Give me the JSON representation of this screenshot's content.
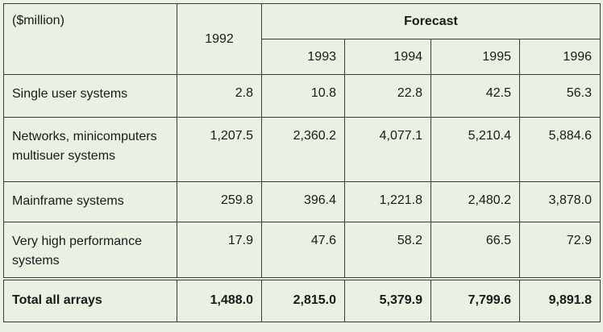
{
  "table": {
    "header": {
      "corner": "($million)",
      "base_year": "1992",
      "forecast": "Forecast",
      "forecast_years": [
        "1993",
        "1994",
        "1995",
        "1996"
      ]
    },
    "rows": [
      [
        "Single user systems",
        "2.8",
        "10.8",
        "22.8",
        "42.5",
        "56.3"
      ],
      [
        "Networks, minicomputers multisuer systems",
        "1,207.5",
        "2,360.2",
        "4,077.1",
        "5,210.4",
        "5,884.6"
      ],
      [
        "Mainframe systems",
        "259.8",
        "396.4",
        "1,221.8",
        "2,480.2",
        "3,878.0"
      ],
      [
        "Very high performance systems",
        "17.9",
        "47.6",
        "58.2",
        "66.5",
        "72.9"
      ]
    ],
    "total": [
      "Total all arrays",
      "1,488.0",
      "2,815.0",
      "5,379.9",
      "7,799.6",
      "9,891.8"
    ]
  }
}
